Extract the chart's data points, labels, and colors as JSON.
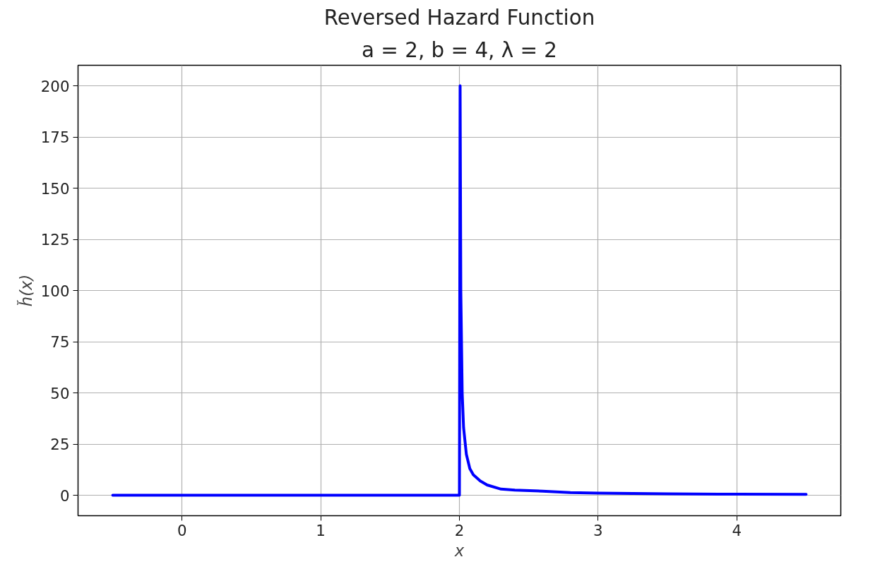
{
  "chart_data": {
    "type": "line",
    "title": "Reversed Hazard Function",
    "subtitle": "a = 2, b = 4, λ = 2",
    "xlabel": "x",
    "ylabel": "h̆(x)",
    "x": [
      -0.5,
      1.0,
      1.995,
      2.0,
      2.005,
      2.01,
      2.02,
      2.03,
      2.05,
      2.075,
      2.1,
      2.15,
      2.2,
      2.3,
      2.4,
      2.6,
      2.8,
      3.0,
      3.5,
      4.0,
      4.5
    ],
    "series": [
      {
        "color": "#0000ff",
        "values": [
          0,
          0,
          0,
          0,
          200,
          100,
          50,
          33,
          20,
          13,
          10,
          7,
          5,
          3,
          2.5,
          2,
          1.3,
          1,
          0.7,
          0.5,
          0.4
        ]
      }
    ],
    "xlim": [
      -0.75,
      4.75
    ],
    "ylim": [
      -10,
      210
    ],
    "xticks": [
      0,
      1,
      2,
      3,
      4
    ],
    "yticks": [
      0,
      25,
      50,
      75,
      100,
      125,
      150,
      175,
      200
    ],
    "grid": true,
    "marker": "none",
    "line_style": "solid"
  }
}
